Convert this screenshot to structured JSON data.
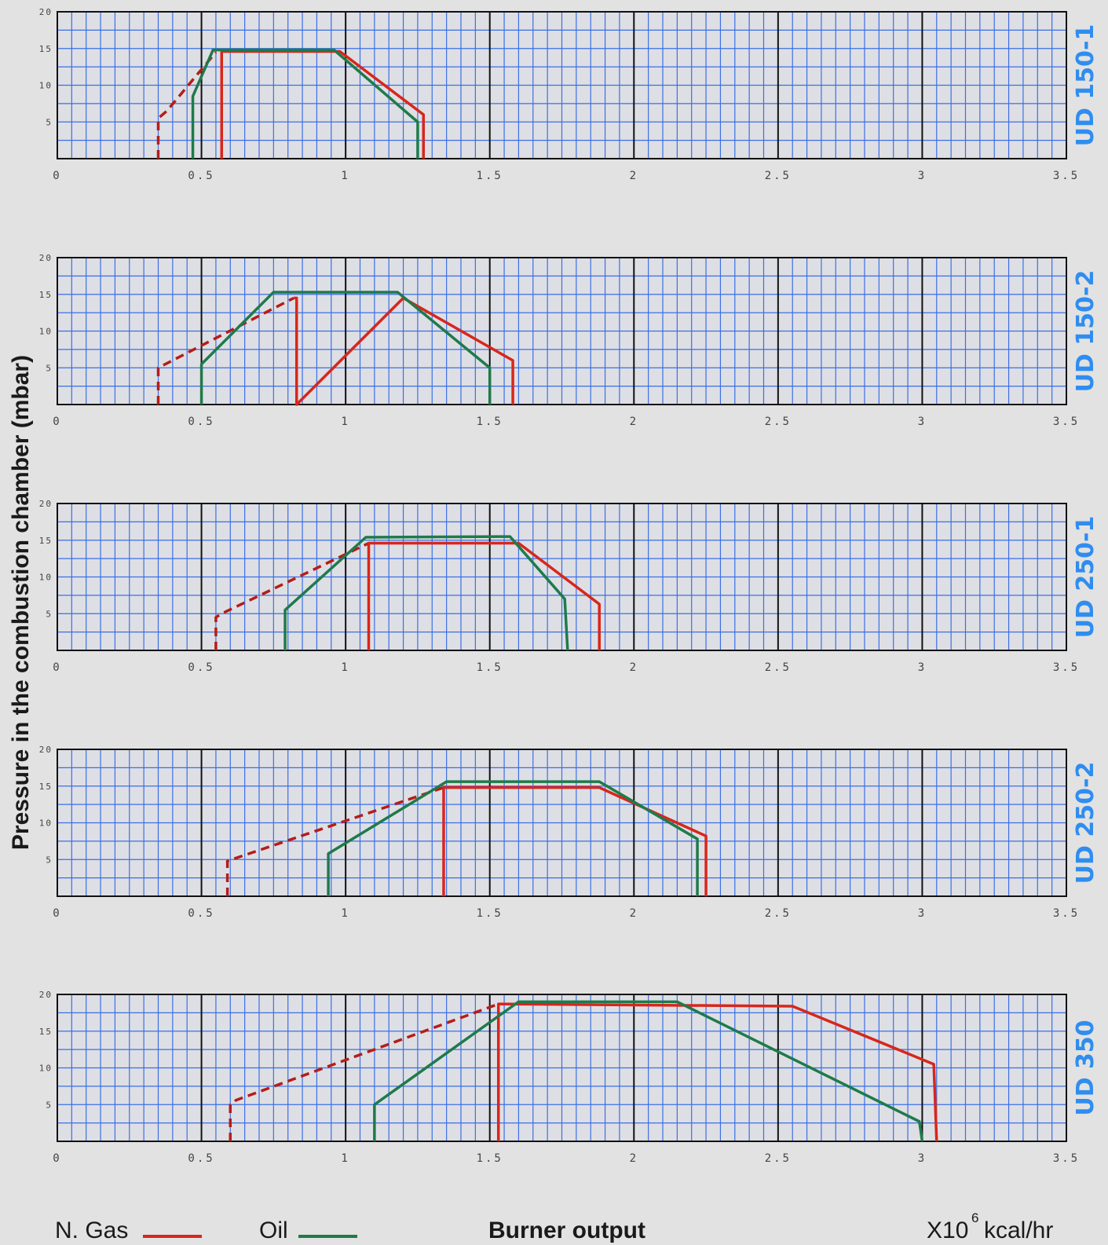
{
  "chart_data": {
    "type": "line",
    "ylabel": "Pressure in the combustion chamber (mbar)",
    "xlabel": "Burner output",
    "unit": {
      "prefix": "X10",
      "exponent": "6",
      "suffix": "kcal/hr"
    },
    "legend": [
      {
        "name": "N. Gas",
        "color": "#d8261c"
      },
      {
        "name": "Oil",
        "color": "#1f7a4a"
      }
    ],
    "xlim": [
      0,
      3.5
    ],
    "ylim": [
      0,
      20
    ],
    "x_ticks": [
      "0",
      "0.5",
      "1",
      "1.5",
      "2",
      "2.5",
      "3",
      "3.5"
    ],
    "x_tick_values": [
      0,
      0.5,
      1,
      1.5,
      2,
      2.5,
      3,
      3.5
    ],
    "y_ticks": [
      "20",
      "15",
      "10",
      "5"
    ],
    "y_tick_values": [
      20,
      15,
      10,
      5
    ],
    "grid": true,
    "panels": [
      {
        "model": "UD 150-1",
        "series": [
          {
            "name": "N. Gas",
            "color": "#d8261c",
            "dashed_x": [
              0.35,
              0.35,
              0.38,
              0.55
            ],
            "dashed_y": [
              0,
              5.5,
              6.5,
              14.5
            ],
            "x": [
              0.55,
              0.57,
              0.57,
              0.98,
              1.27,
              1.27
            ],
            "y": [
              14.5,
              14.5,
              0,
              14.5,
              6,
              0
            ],
            "path_x": [
              0.57,
              0.57,
              0.98,
              1.27,
              1.27
            ],
            "path_y": [
              0,
              14.6,
              14.6,
              6,
              0
            ]
          },
          {
            "name": "Oil",
            "color": "#1f7a4a",
            "x": [
              0.47,
              0.47,
              0.54,
              0.96,
              1.25,
              1.25
            ],
            "y": [
              0,
              8.5,
              14.8,
              14.8,
              5,
              0
            ]
          }
        ]
      },
      {
        "model": "UD 150-2",
        "series": [
          {
            "name": "N. Gas",
            "color": "#d8261c",
            "dashed_x": [
              0.35,
              0.35,
              0.82
            ],
            "dashed_y": [
              0,
              5,
              14.5
            ],
            "path_x": [
              0.82,
              0.83,
              0.83,
              1.2,
              1.58,
              1.58
            ],
            "path_y": [
              14.5,
              14.5,
              0,
              14.5,
              6,
              0
            ],
            "x": [
              0.83,
              0.83,
              1.2,
              1.58,
              1.58
            ],
            "y": [
              0,
              14.6,
              14.6,
              6,
              0
            ]
          },
          {
            "name": "Oil",
            "color": "#1f7a4a",
            "x": [
              0.5,
              0.5,
              0.75,
              1.18,
              1.5,
              1.5
            ],
            "y": [
              0,
              5.5,
              15.3,
              15.3,
              5,
              0
            ]
          }
        ]
      },
      {
        "model": "UD 250-1",
        "series": [
          {
            "name": "N. Gas",
            "color": "#d8261c",
            "dashed_x": [
              0.55,
              0.55,
              0.57,
              1.08
            ],
            "dashed_y": [
              0,
              4.5,
              5,
              14.6
            ],
            "x": [
              1.08,
              1.08,
              1.6,
              1.88,
              1.88
            ],
            "y": [
              0,
              14.6,
              14.6,
              6.3,
              0
            ]
          },
          {
            "name": "Oil",
            "color": "#1f7a4a",
            "x": [
              0.79,
              0.79,
              1.07,
              1.57,
              1.76,
              1.77
            ],
            "y": [
              0,
              5.5,
              15.4,
              15.5,
              7,
              0
            ]
          }
        ]
      },
      {
        "model": "UD 250-2",
        "series": [
          {
            "name": "N. Gas",
            "color": "#d8261c",
            "dashed_x": [
              0.59,
              0.59,
              1.34
            ],
            "dashed_y": [
              0,
              4.8,
              14.8
            ],
            "x": [
              1.34,
              1.34,
              1.88,
              2.25,
              2.25
            ],
            "y": [
              0,
              14.8,
              14.8,
              8.2,
              0
            ]
          },
          {
            "name": "Oil",
            "color": "#1f7a4a",
            "x": [
              0.94,
              0.94,
              1.35,
              1.88,
              2.22,
              2.22
            ],
            "y": [
              0,
              5.8,
              15.6,
              15.6,
              7.8,
              0
            ]
          }
        ]
      },
      {
        "model": "UD 350",
        "series": [
          {
            "name": "N. Gas",
            "color": "#d8261c",
            "dashed_x": [
              0.6,
              0.6,
              0.62,
              1.53
            ],
            "dashed_y": [
              0,
              5,
              5.6,
              18.7
            ],
            "x": [
              1.53,
              1.53,
              2.55,
              3.04,
              3.05
            ],
            "y": [
              0,
              18.7,
              18.4,
              10.5,
              0
            ]
          },
          {
            "name": "Oil",
            "color": "#1f7a4a",
            "x": [
              1.1,
              1.1,
              1.6,
              2.15,
              2.99,
              3.0
            ],
            "y": [
              0,
              5,
              19,
              19,
              2.7,
              0
            ]
          }
        ]
      }
    ]
  }
}
